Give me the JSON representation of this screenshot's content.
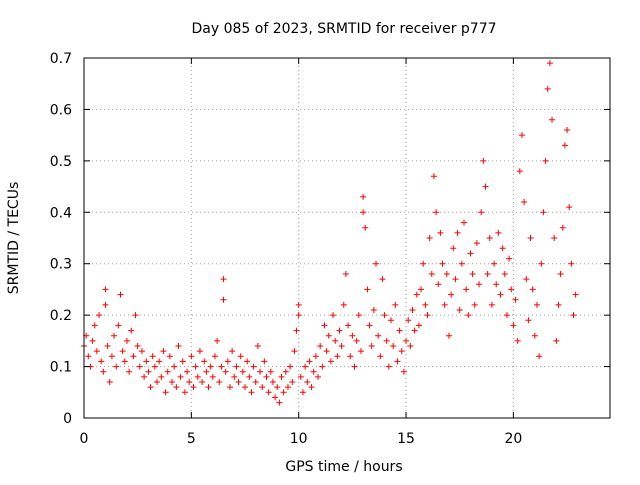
{
  "chart_data": {
    "type": "scatter",
    "title": "Day 085 of 2023, SRMTID for receiver p777",
    "xlabel": "GPS time / hours",
    "ylabel": "SRMTID / TECUs",
    "xlim": [
      0,
      24.5
    ],
    "ylim": [
      0,
      0.7
    ],
    "x_ticks": [
      0,
      5,
      10,
      15,
      20
    ],
    "y_ticks": [
      0,
      0.1,
      0.2,
      0.3,
      0.4,
      0.5,
      0.6,
      0.7
    ],
    "x_tick_labels": [
      "0",
      "5",
      "10",
      "15",
      "20"
    ],
    "y_tick_labels": [
      "0",
      "0.1",
      "0.2",
      "0.3",
      "0.4",
      "0.5",
      "0.6",
      "0.7"
    ],
    "grid": true,
    "marker": "+",
    "series_color": "#ff0000",
    "series": [
      {
        "name": "SRMTID",
        "points": [
          [
            0.0,
            0.14
          ],
          [
            0.1,
            0.16
          ],
          [
            0.2,
            0.12
          ],
          [
            0.3,
            0.1
          ],
          [
            0.4,
            0.15
          ],
          [
            0.5,
            0.18
          ],
          [
            0.6,
            0.13
          ],
          [
            0.7,
            0.2
          ],
          [
            0.8,
            0.11
          ],
          [
            0.9,
            0.09
          ],
          [
            1.0,
            0.25
          ],
          [
            1.0,
            0.22
          ],
          [
            1.1,
            0.14
          ],
          [
            1.2,
            0.07
          ],
          [
            1.3,
            0.12
          ],
          [
            1.4,
            0.16
          ],
          [
            1.5,
            0.1
          ],
          [
            1.6,
            0.18
          ],
          [
            1.7,
            0.24
          ],
          [
            1.8,
            0.13
          ],
          [
            1.9,
            0.11
          ],
          [
            2.0,
            0.15
          ],
          [
            2.1,
            0.09
          ],
          [
            2.2,
            0.17
          ],
          [
            2.3,
            0.12
          ],
          [
            2.4,
            0.2
          ],
          [
            2.5,
            0.14
          ],
          [
            2.6,
            0.1
          ],
          [
            2.7,
            0.13
          ],
          [
            2.8,
            0.08
          ],
          [
            2.9,
            0.11
          ],
          [
            3.0,
            0.09
          ],
          [
            3.1,
            0.06
          ],
          [
            3.2,
            0.12
          ],
          [
            3.3,
            0.1
          ],
          [
            3.4,
            0.07
          ],
          [
            3.5,
            0.11
          ],
          [
            3.6,
            0.08
          ],
          [
            3.7,
            0.13
          ],
          [
            3.8,
            0.05
          ],
          [
            3.9,
            0.09
          ],
          [
            4.0,
            0.12
          ],
          [
            4.1,
            0.07
          ],
          [
            4.2,
            0.1
          ],
          [
            4.3,
            0.06
          ],
          [
            4.4,
            0.14
          ],
          [
            4.5,
            0.08
          ],
          [
            4.6,
            0.11
          ],
          [
            4.7,
            0.05
          ],
          [
            4.8,
            0.09
          ],
          [
            4.9,
            0.07
          ],
          [
            5.0,
            0.12
          ],
          [
            5.1,
            0.06
          ],
          [
            5.2,
            0.1
          ],
          [
            5.3,
            0.08
          ],
          [
            5.4,
            0.13
          ],
          [
            5.5,
            0.07
          ],
          [
            5.6,
            0.11
          ],
          [
            5.7,
            0.09
          ],
          [
            5.8,
            0.06
          ],
          [
            5.9,
            0.1
          ],
          [
            6.0,
            0.08
          ],
          [
            6.1,
            0.12
          ],
          [
            6.2,
            0.15
          ],
          [
            6.3,
            0.07
          ],
          [
            6.4,
            0.1
          ],
          [
            6.5,
            0.27
          ],
          [
            6.5,
            0.23
          ],
          [
            6.6,
            0.09
          ],
          [
            6.7,
            0.11
          ],
          [
            6.8,
            0.06
          ],
          [
            6.9,
            0.13
          ],
          [
            7.0,
            0.08
          ],
          [
            7.1,
            0.1
          ],
          [
            7.2,
            0.07
          ],
          [
            7.3,
            0.12
          ],
          [
            7.4,
            0.09
          ],
          [
            7.5,
            0.06
          ],
          [
            7.6,
            0.11
          ],
          [
            7.7,
            0.08
          ],
          [
            7.8,
            0.05
          ],
          [
            7.9,
            0.1
          ],
          [
            8.0,
            0.07
          ],
          [
            8.1,
            0.14
          ],
          [
            8.2,
            0.09
          ],
          [
            8.3,
            0.06
          ],
          [
            8.4,
            0.11
          ],
          [
            8.5,
            0.08
          ],
          [
            8.6,
            0.05
          ],
          [
            8.7,
            0.09
          ],
          [
            8.8,
            0.07
          ],
          [
            8.9,
            0.04
          ],
          [
            9.0,
            0.06
          ],
          [
            9.1,
            0.03
          ],
          [
            9.2,
            0.08
          ],
          [
            9.3,
            0.05
          ],
          [
            9.4,
            0.09
          ],
          [
            9.5,
            0.06
          ],
          [
            9.6,
            0.1
          ],
          [
            9.7,
            0.07
          ],
          [
            9.8,
            0.13
          ],
          [
            9.9,
            0.17
          ],
          [
            10.0,
            0.22
          ],
          [
            10.0,
            0.2
          ],
          [
            10.1,
            0.08
          ],
          [
            10.2,
            0.05
          ],
          [
            10.3,
            0.1
          ],
          [
            10.4,
            0.07
          ],
          [
            10.5,
            0.11
          ],
          [
            10.6,
            0.06
          ],
          [
            10.7,
            0.09
          ],
          [
            10.8,
            0.12
          ],
          [
            10.9,
            0.08
          ],
          [
            11.0,
            0.14
          ],
          [
            11.1,
            0.1
          ],
          [
            11.2,
            0.18
          ],
          [
            11.3,
            0.13
          ],
          [
            11.4,
            0.16
          ],
          [
            11.5,
            0.11
          ],
          [
            11.6,
            0.2
          ],
          [
            11.7,
            0.15
          ],
          [
            11.8,
            0.12
          ],
          [
            11.9,
            0.17
          ],
          [
            12.0,
            0.14
          ],
          [
            12.1,
            0.22
          ],
          [
            12.2,
            0.28
          ],
          [
            12.3,
            0.18
          ],
          [
            12.4,
            0.12
          ],
          [
            12.5,
            0.16
          ],
          [
            12.6,
            0.1
          ],
          [
            12.7,
            0.15
          ],
          [
            12.8,
            0.2
          ],
          [
            12.9,
            0.13
          ],
          [
            13.0,
            0.43
          ],
          [
            13.0,
            0.4
          ],
          [
            13.1,
            0.37
          ],
          [
            13.2,
            0.25
          ],
          [
            13.3,
            0.18
          ],
          [
            13.4,
            0.14
          ],
          [
            13.5,
            0.21
          ],
          [
            13.6,
            0.3
          ],
          [
            13.7,
            0.16
          ],
          [
            13.8,
            0.12
          ],
          [
            13.9,
            0.27
          ],
          [
            14.0,
            0.2
          ],
          [
            14.1,
            0.15
          ],
          [
            14.2,
            0.1
          ],
          [
            14.3,
            0.19
          ],
          [
            14.4,
            0.14
          ],
          [
            14.5,
            0.22
          ],
          [
            14.6,
            0.11
          ],
          [
            14.7,
            0.17
          ],
          [
            14.8,
            0.13
          ],
          [
            14.9,
            0.09
          ],
          [
            15.0,
            0.15
          ],
          [
            15.1,
            0.19
          ],
          [
            15.2,
            0.14
          ],
          [
            15.3,
            0.21
          ],
          [
            15.4,
            0.17
          ],
          [
            15.5,
            0.24
          ],
          [
            15.6,
            0.18
          ],
          [
            15.7,
            0.25
          ],
          [
            15.8,
            0.3
          ],
          [
            15.9,
            0.22
          ],
          [
            16.0,
            0.2
          ],
          [
            16.1,
            0.35
          ],
          [
            16.2,
            0.28
          ],
          [
            16.3,
            0.47
          ],
          [
            16.4,
            0.4
          ],
          [
            16.5,
            0.26
          ],
          [
            16.6,
            0.36
          ],
          [
            16.7,
            0.3
          ],
          [
            16.8,
            0.22
          ],
          [
            16.9,
            0.28
          ],
          [
            17.0,
            0.16
          ],
          [
            17.1,
            0.24
          ],
          [
            17.2,
            0.33
          ],
          [
            17.3,
            0.27
          ],
          [
            17.4,
            0.36
          ],
          [
            17.5,
            0.21
          ],
          [
            17.6,
            0.3
          ],
          [
            17.7,
            0.38
          ],
          [
            17.8,
            0.25
          ],
          [
            17.9,
            0.2
          ],
          [
            18.0,
            0.32
          ],
          [
            18.1,
            0.28
          ],
          [
            18.2,
            0.22
          ],
          [
            18.3,
            0.34
          ],
          [
            18.4,
            0.26
          ],
          [
            18.5,
            0.4
          ],
          [
            18.6,
            0.5
          ],
          [
            18.7,
            0.45
          ],
          [
            18.8,
            0.28
          ],
          [
            18.9,
            0.35
          ],
          [
            19.0,
            0.22
          ],
          [
            19.1,
            0.3
          ],
          [
            19.2,
            0.26
          ],
          [
            19.3,
            0.36
          ],
          [
            19.4,
            0.24
          ],
          [
            19.5,
            0.33
          ],
          [
            19.6,
            0.28
          ],
          [
            19.7,
            0.2
          ],
          [
            19.8,
            0.31
          ],
          [
            19.9,
            0.25
          ],
          [
            20.0,
            0.18
          ],
          [
            20.1,
            0.23
          ],
          [
            20.2,
            0.15
          ],
          [
            20.3,
            0.48
          ],
          [
            20.4,
            0.55
          ],
          [
            20.5,
            0.42
          ],
          [
            20.6,
            0.27
          ],
          [
            20.7,
            0.19
          ],
          [
            20.8,
            0.35
          ],
          [
            20.9,
            0.25
          ],
          [
            21.0,
            0.16
          ],
          [
            21.1,
            0.22
          ],
          [
            21.2,
            0.12
          ],
          [
            21.3,
            0.3
          ],
          [
            21.4,
            0.4
          ],
          [
            21.5,
            0.5
          ],
          [
            21.6,
            0.64
          ],
          [
            21.7,
            0.69
          ],
          [
            21.8,
            0.58
          ],
          [
            21.9,
            0.35
          ],
          [
            22.0,
            0.15
          ],
          [
            22.1,
            0.22
          ],
          [
            22.2,
            0.28
          ],
          [
            22.3,
            0.37
          ],
          [
            22.4,
            0.53
          ],
          [
            22.5,
            0.56
          ],
          [
            22.6,
            0.41
          ],
          [
            22.7,
            0.3
          ],
          [
            22.8,
            0.2
          ],
          [
            22.9,
            0.24
          ]
        ]
      }
    ]
  }
}
